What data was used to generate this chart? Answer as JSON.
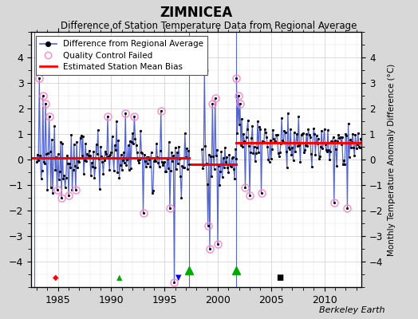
{
  "title": "ZIMNICEA",
  "subtitle": "Difference of Station Temperature Data from Regional Average",
  "ylabel": "Monthly Temperature Anomaly Difference (°C)",
  "xlabel_credit": "Berkeley Earth",
  "xlim": [
    1982.5,
    2013.5
  ],
  "ylim": [
    -5,
    5
  ],
  "yticks": [
    -4,
    -3,
    -2,
    -1,
    0,
    1,
    2,
    3,
    4
  ],
  "xticks": [
    1985,
    1990,
    1995,
    2000,
    2005,
    2010
  ],
  "background_color": "#d8d8d8",
  "plot_bg_color": "#ffffff",
  "line_color": "#5566cc",
  "bias_color": "#ff0000",
  "qc_color": "#ff88cc",
  "gap_color": "#00aa00",
  "segment1_bias": 0.05,
  "segment2_bias": -0.18,
  "segment3_bias": 0.65,
  "segment1_start": 1982.5,
  "segment1_end": 1997.3,
  "segment2_start": 1997.5,
  "segment2_end": 2001.75,
  "segment3_start": 2001.75,
  "segment3_end": 2013.5,
  "gap_x1": 1997.3,
  "gap_x2": 2001.75,
  "station_move_x": 1982.75
}
